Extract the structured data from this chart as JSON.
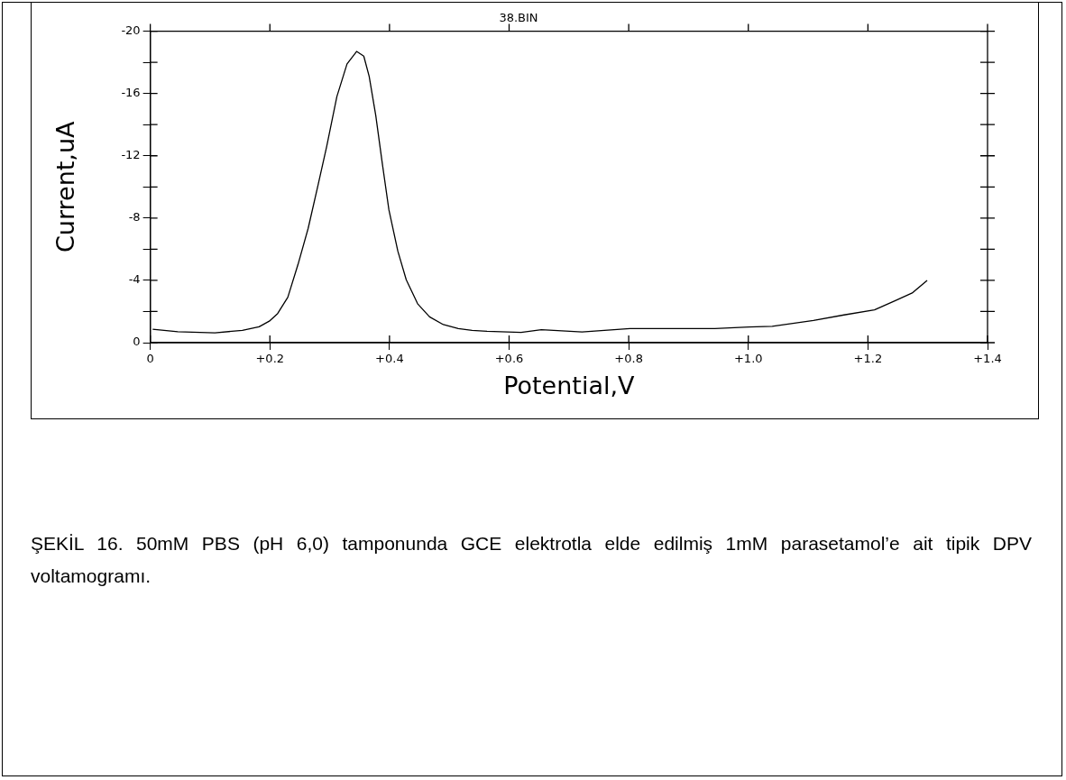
{
  "chart_data": {
    "type": "line",
    "title": "38.BIN",
    "xlabel": "Potential,V",
    "ylabel": "Current,uA",
    "annotations": [
      "ŞEKİL 16. 50mM PBS (pH 6,0) tamponunda GCE elektrotla elde edilmiş 1mM parasetamol’e ait tipik DPV voltamogramı."
    ],
    "x": [
      0.004,
      0.046,
      0.108,
      0.154,
      0.182,
      0.199,
      0.213,
      0.23,
      0.247,
      0.264,
      0.281,
      0.295,
      0.312,
      0.329,
      0.345,
      0.357,
      0.366,
      0.377,
      0.388,
      0.399,
      0.414,
      0.428,
      0.447,
      0.467,
      0.49,
      0.515,
      0.538,
      0.563,
      0.62,
      0.654,
      0.722,
      0.802,
      0.944,
      1.001,
      1.04,
      1.109,
      1.16,
      1.211,
      1.245,
      1.274,
      1.299
    ],
    "series": [
      {
        "color": "#000000",
        "values": [
          -0.86,
          -0.7,
          -0.63,
          -0.79,
          -1.02,
          -1.38,
          -1.87,
          -2.92,
          -5.02,
          -7.34,
          -10.2,
          -12.6,
          -15.8,
          -17.9,
          -18.7,
          -18.4,
          -17.1,
          -14.6,
          -11.5,
          -8.53,
          -5.87,
          -4.04,
          -2.5,
          -1.66,
          -1.16,
          -0.91,
          -0.79,
          -0.73,
          -0.66,
          -0.83,
          -0.69,
          -0.9,
          -0.9,
          -1.01,
          -1.05,
          -1.43,
          -1.78,
          -2.11,
          -2.69,
          -3.19,
          -3.99
        ]
      }
    ],
    "xlim": [
      0,
      1.4
    ],
    "ylim": [
      0,
      -20
    ],
    "xticks": [
      0,
      {
        "value": 0.2,
        "label": "+0.2"
      },
      {
        "value": 0.4,
        "label": "+0.4"
      },
      {
        "value": 0.6,
        "label": "+0.6"
      },
      {
        "value": 0.8,
        "label": "+0.8"
      },
      {
        "value": 1.0,
        "label": "+1.0"
      },
      {
        "value": 1.2,
        "label": "+1.2"
      },
      {
        "value": 1.4,
        "label": "+1.4"
      }
    ],
    "yticks": [
      0,
      {
        "value": -2,
        "label": null
      },
      -4,
      {
        "value": -6,
        "label": null
      },
      -8,
      {
        "value": -10,
        "label": null
      },
      -12,
      {
        "value": -14,
        "label": null
      },
      -16,
      {
        "value": -18,
        "label": null
      },
      -20
    ],
    "marker": "none",
    "line_style": "solid",
    "grid": false,
    "legend": false
  }
}
